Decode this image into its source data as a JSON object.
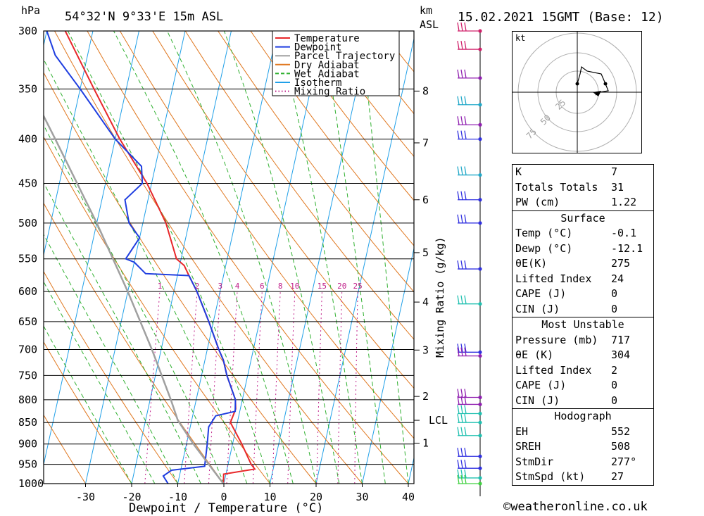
{
  "header": {
    "location": "54°32'N  9°33'E  15m  ASL",
    "pressure_unit": "hPa",
    "height_unit_line1": "km",
    "height_unit_line2": "ASL",
    "datetime": "15.02.2021  15GMT  (Base: 12)"
  },
  "colors": {
    "temperature": "#e8282a",
    "dewpoint": "#1f3ee0",
    "parcel": "#a0a0a0",
    "dry_adiabat": "#e07820",
    "wet_adiabat": "#30b030",
    "isotherm": "#20a0e8",
    "mixing_ratio": "#c0208a"
  },
  "chart_data": {
    "type": "line",
    "title": "Skew-T log-P sounding",
    "xlabel": "Dewpoint / Temperature (°C)",
    "ylabel": "hPa",
    "mixing_ratio_label": "Mixing Ratio (g/kg)",
    "x_ticks": [
      "-30",
      "-20",
      "-10",
      "0",
      "10",
      "20",
      "30",
      "40"
    ],
    "pressure_levels": [
      300,
      350,
      400,
      450,
      500,
      550,
      600,
      650,
      700,
      750,
      800,
      850,
      900,
      950,
      1000
    ],
    "km_ticks": [
      {
        "label": "8",
        "p": 352
      },
      {
        "label": "7",
        "p": 404
      },
      {
        "label": "6",
        "p": 470
      },
      {
        "label": "5",
        "p": 541
      },
      {
        "label": "4",
        "p": 617
      },
      {
        "label": "3",
        "p": 701
      },
      {
        "label": "2",
        "p": 793
      },
      {
        "label": "LCL",
        "p": 845
      },
      {
        "label": "1",
        "p": 898
      }
    ],
    "mixing_ratio_values": [
      "1",
      "2",
      "3",
      "4",
      "6",
      "8",
      "10",
      "15",
      "20",
      "25"
    ],
    "legend": [
      {
        "name": "Temperature",
        "color": "#e8282a",
        "style": "solid"
      },
      {
        "name": "Dewpoint",
        "color": "#1f3ee0",
        "style": "solid"
      },
      {
        "name": "Parcel Trajectory",
        "color": "#a0a0a0",
        "style": "solid"
      },
      {
        "name": "Dry Adiabat",
        "color": "#e07820",
        "style": "solid"
      },
      {
        "name": "Wet Adiabat",
        "color": "#30b030",
        "style": "dashed"
      },
      {
        "name": "Isotherm",
        "color": "#20a0e8",
        "style": "solid"
      },
      {
        "name": "Mixing Ratio",
        "color": "#c0208a",
        "style": "dotted"
      }
    ],
    "series": [
      {
        "name": "Temperature",
        "points": [
          [
            1000,
            -0.1
          ],
          [
            975,
            -0.5
          ],
          [
            962,
            6
          ],
          [
            950,
            5
          ],
          [
            900,
            2
          ],
          [
            850,
            -1.5
          ],
          [
            820,
            -1
          ],
          [
            800,
            -1.5
          ],
          [
            750,
            -4.5
          ],
          [
            720,
            -6
          ],
          [
            700,
            -7.5
          ],
          [
            650,
            -11
          ],
          [
            600,
            -15
          ],
          [
            575,
            -17.5
          ],
          [
            560,
            -19
          ],
          [
            550,
            -21
          ],
          [
            500,
            -25
          ],
          [
            450,
            -31
          ],
          [
            400,
            -39
          ],
          [
            350,
            -47
          ],
          [
            300,
            -56
          ]
        ]
      },
      {
        "name": "Dewpoint",
        "points": [
          [
            1000,
            -12.1
          ],
          [
            980,
            -13.5
          ],
          [
            965,
            -12
          ],
          [
            955,
            -5
          ],
          [
            900,
            -5.5
          ],
          [
            860,
            -6
          ],
          [
            835,
            -5
          ],
          [
            825,
            -1
          ],
          [
            800,
            -1.5
          ],
          [
            750,
            -4.5
          ],
          [
            720,
            -6
          ],
          [
            700,
            -7.5
          ],
          [
            650,
            -11
          ],
          [
            600,
            -15
          ],
          [
            575,
            -17.5
          ],
          [
            572,
            -27
          ],
          [
            555,
            -30
          ],
          [
            550,
            -32
          ],
          [
            520,
            -30
          ],
          [
            500,
            -33
          ],
          [
            470,
            -35
          ],
          [
            450,
            -32
          ],
          [
            430,
            -33
          ],
          [
            400,
            -40
          ],
          [
            350,
            -50
          ],
          [
            320,
            -57
          ],
          [
            300,
            -60
          ]
        ]
      },
      {
        "name": "Parcel Trajectory",
        "points": [
          [
            1000,
            -0.1
          ],
          [
            900,
            -8.5
          ],
          [
            845,
            -13
          ],
          [
            800,
            -15.5
          ],
          [
            700,
            -22
          ],
          [
            600,
            -30
          ],
          [
            500,
            -40
          ],
          [
            400,
            -53
          ],
          [
            300,
            -70
          ]
        ]
      }
    ],
    "wind_barbs": [
      {
        "p": 300,
        "color": "#d0206a"
      },
      {
        "p": 315,
        "color": "#d0206a"
      },
      {
        "p": 340,
        "color": "#9020b0"
      },
      {
        "p": 365,
        "color": "#20a8c8"
      },
      {
        "p": 385,
        "color": "#9020b0"
      },
      {
        "p": 400,
        "color": "#3030e0"
      },
      {
        "p": 440,
        "color": "#20a8c8"
      },
      {
        "p": 470,
        "color": "#3030e0"
      },
      {
        "p": 500,
        "color": "#3030e0"
      },
      {
        "p": 565,
        "color": "#3030e0"
      },
      {
        "p": 620,
        "color": "#20c0b0"
      },
      {
        "p": 705,
        "color": "#3030e0"
      },
      {
        "p": 712,
        "color": "#9020b0"
      },
      {
        "p": 795,
        "color": "#9020b0"
      },
      {
        "p": 810,
        "color": "#9020b0"
      },
      {
        "p": 830,
        "color": "#20c0b0"
      },
      {
        "p": 850,
        "color": "#20c0b0"
      },
      {
        "p": 880,
        "color": "#20c0b0"
      },
      {
        "p": 930,
        "color": "#3030e0"
      },
      {
        "p": 960,
        "color": "#3030e0"
      },
      {
        "p": 985,
        "color": "#20c0b0"
      },
      {
        "p": 1000,
        "color": "#40d040"
      }
    ]
  },
  "hodograph": {
    "unit": "kt",
    "rings": [
      "25",
      "50",
      "75"
    ]
  },
  "indices": {
    "rows": [
      {
        "label": "K",
        "value": "7"
      },
      {
        "label": "Totals Totals",
        "value": "31"
      },
      {
        "label": "PW (cm)",
        "value": "1.22"
      }
    ]
  },
  "surface": {
    "title": "Surface",
    "rows": [
      {
        "label": "Temp (°C)",
        "value": "-0.1"
      },
      {
        "label": "Dewp (°C)",
        "value": "-12.1"
      },
      {
        "label": "θE(K)",
        "value": "275"
      },
      {
        "label": "Lifted Index",
        "value": "24"
      },
      {
        "label": "CAPE (J)",
        "value": "0"
      },
      {
        "label": "CIN (J)",
        "value": "0"
      }
    ]
  },
  "most_unstable": {
    "title": "Most Unstable",
    "rows": [
      {
        "label": "Pressure (mb)",
        "value": "717"
      },
      {
        "label": "θE (K)",
        "value": "304"
      },
      {
        "label": "Lifted Index",
        "value": "2"
      },
      {
        "label": "CAPE (J)",
        "value": "0"
      },
      {
        "label": "CIN (J)",
        "value": "0"
      }
    ]
  },
  "hodograph_indices": {
    "title": "Hodograph",
    "rows": [
      {
        "label": "EH",
        "value": "552"
      },
      {
        "label": "SREH",
        "value": "508"
      },
      {
        "label": "StmDir",
        "value": "277°"
      },
      {
        "label": "StmSpd (kt)",
        "value": "27"
      }
    ]
  },
  "footer": "©weatheronline.co.uk"
}
